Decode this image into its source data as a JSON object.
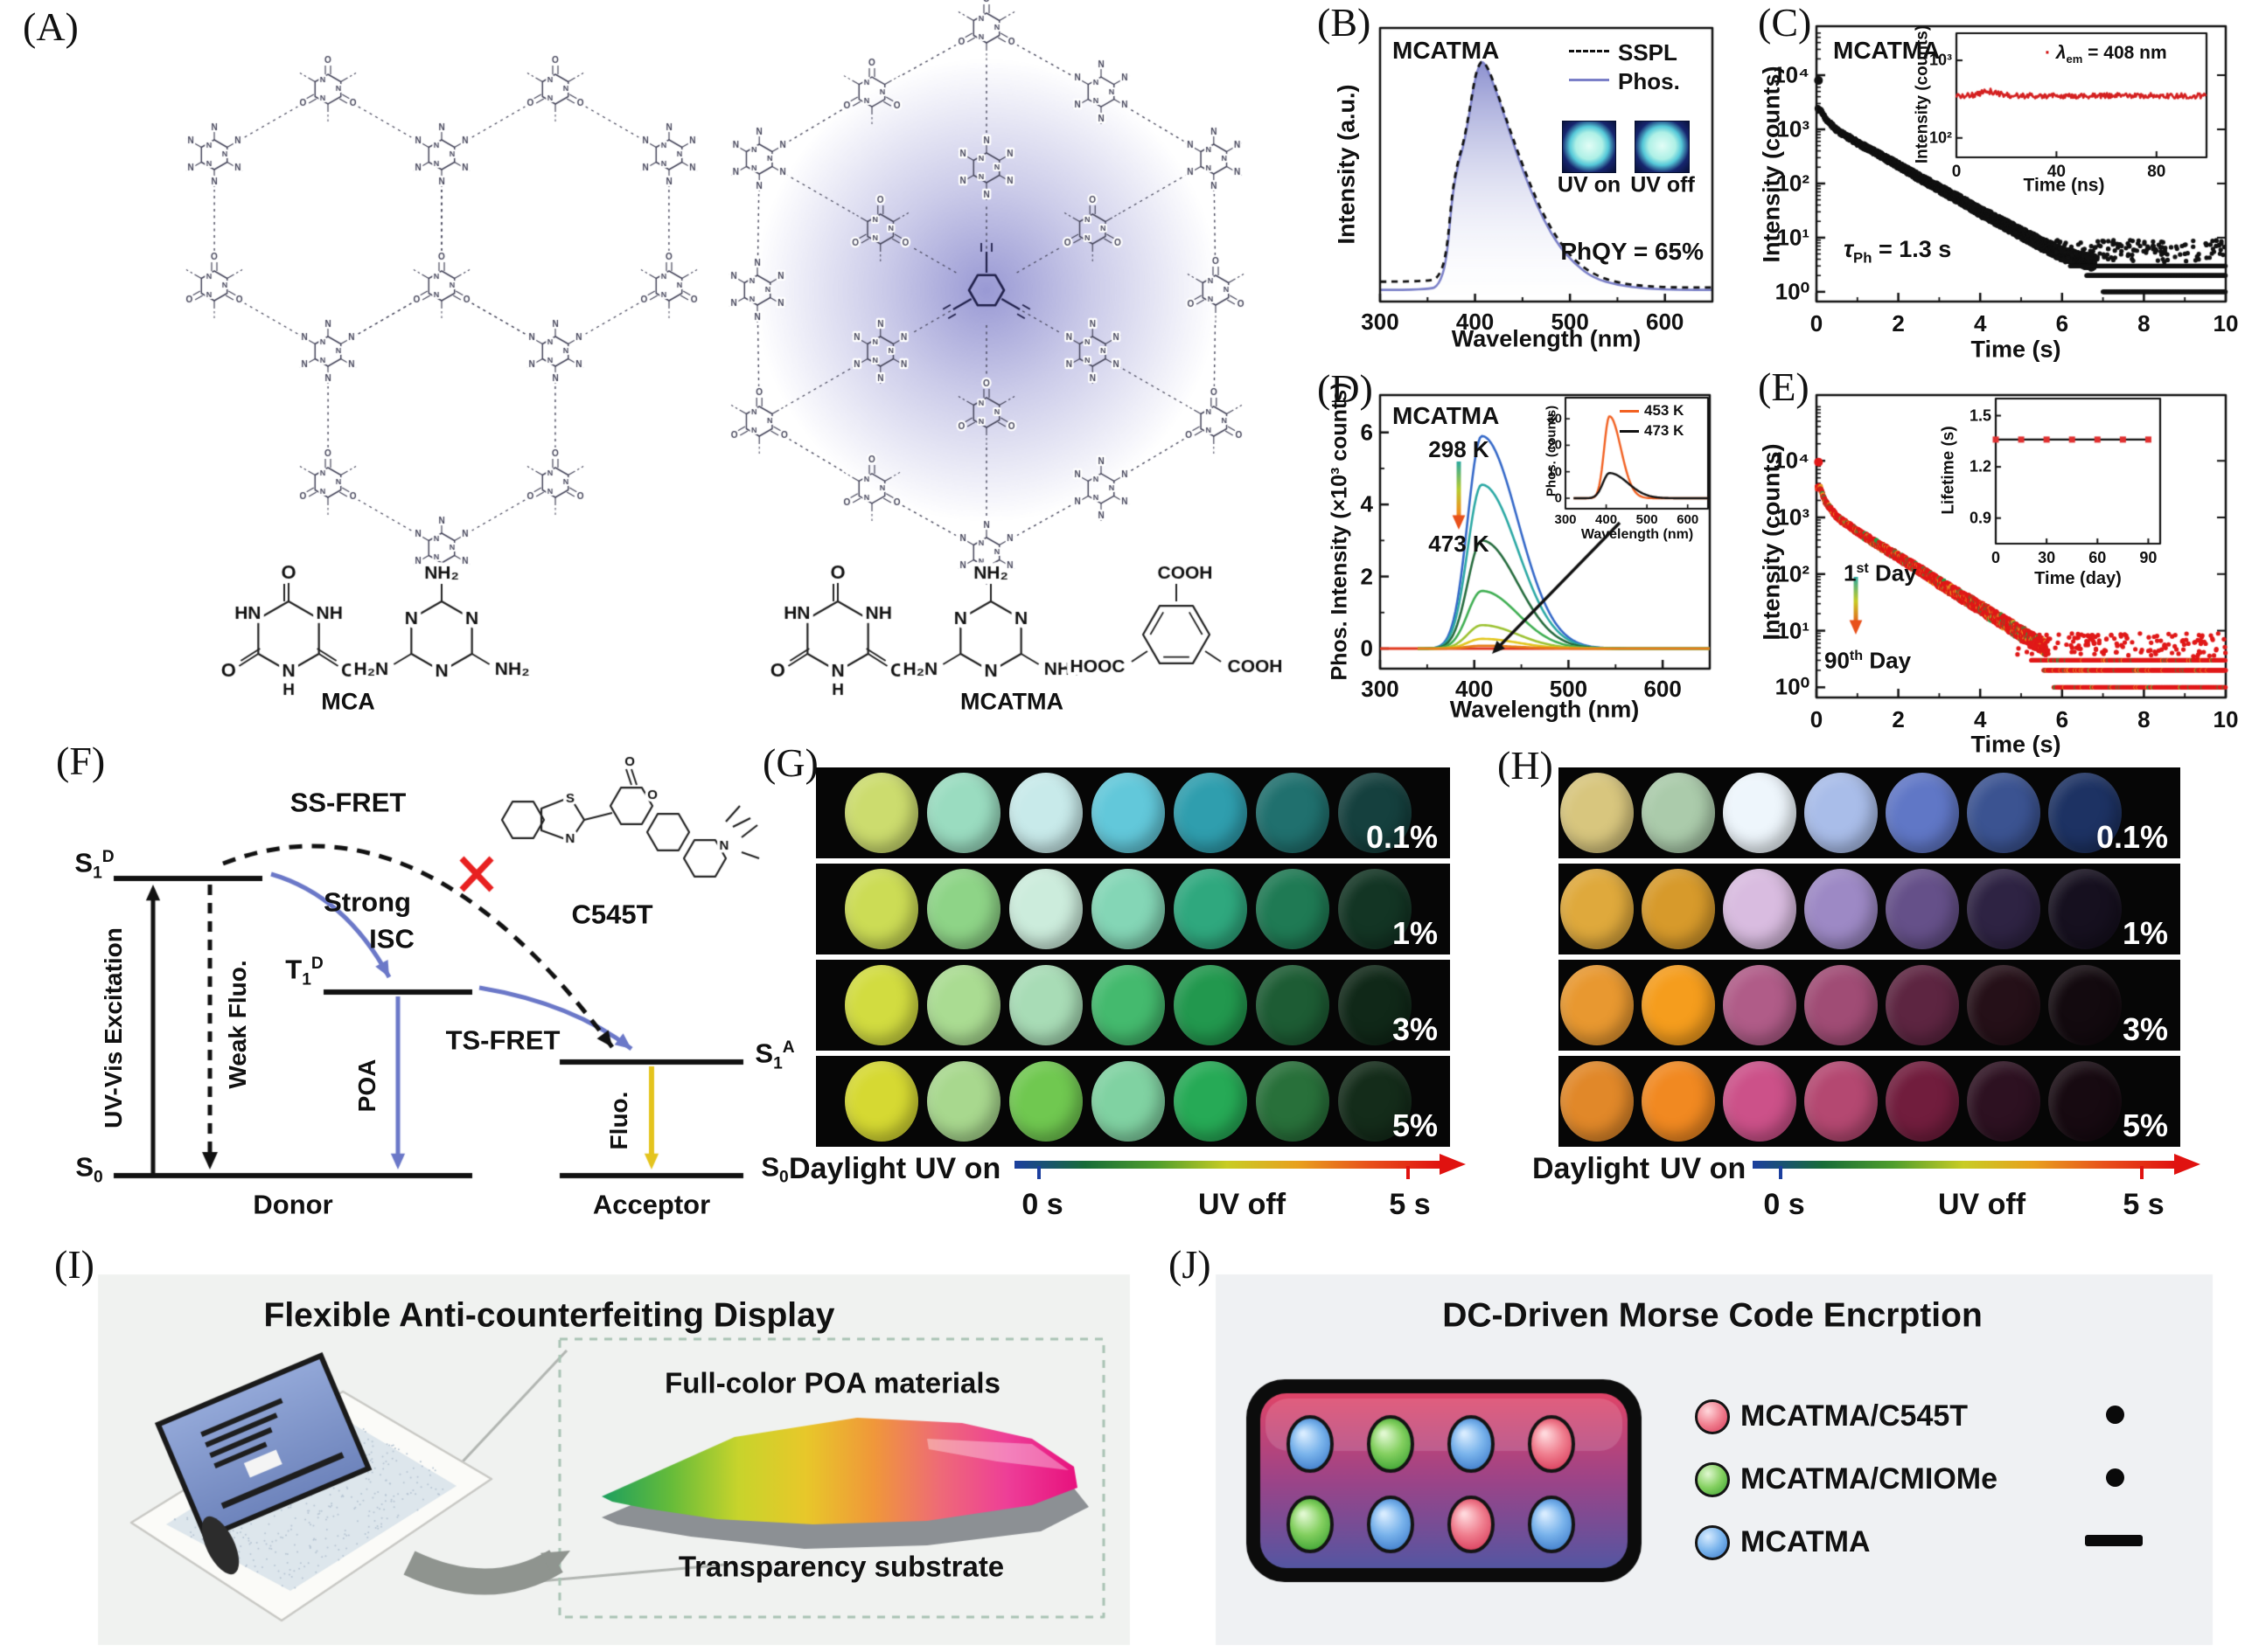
{
  "panels": {
    "A": "(A)",
    "B": "(B)",
    "C": "(C)",
    "D": "(D)",
    "E": "(E)",
    "F": "(F)",
    "G": "(G)",
    "H": "(H)",
    "I": "(I)",
    "J": "(J)"
  },
  "panelA": {
    "left_label": "MCA",
    "right_label": "MCATMA",
    "atoms": {
      "O": "O",
      "N": "N",
      "H": "H",
      "HN": "HN",
      "NH": "NH",
      "NH2": "NH₂",
      "H2N": "H₂N",
      "COOH": "COOH",
      "HOOC": "HOOC"
    },
    "glow_color": "#7d7dc8"
  },
  "panelB": {
    "title": "MCATMA",
    "legend_sspl": "SSPL",
    "legend_phos": "Phos.",
    "uv_on": "UV on",
    "uv_off": "UV off",
    "annotation": "PhQY = 65%",
    "xlabel": "Wavelength (nm)",
    "ylabel": "Intensity (a.u.)",
    "phos_color": "#7b80c8",
    "sspl_color": "#111111"
  },
  "panelC": {
    "title": "MCATMA",
    "ylabel": "Intensity (counts)",
    "xlabel": "Time (s)",
    "tau": {
      "sym": "τ",
      "sub": "Ph",
      "rest": " = 1.3 s"
    },
    "inset": {
      "ylabel": "Intensity (counts)",
      "xlabel": "Time (ns)",
      "legend": {
        "sym": "λ",
        "sub": "em",
        "rest": " = 408 nm"
      },
      "line_color": "#d42020"
    }
  },
  "panelD": {
    "title": "MCATMA",
    "ylabel": "Phos. Intensity (×10³ counts)",
    "xlabel": "Wavelength (nm)",
    "temp_from": "298 K",
    "temp_to": "473 K",
    "inset": {
      "ylabel": "Phos. (counts)",
      "xlabel": "Wavelength (nm)",
      "legend_453": "453 K",
      "legend_473": "473 K"
    }
  },
  "panelE": {
    "ylabel": "Intensity (counts)",
    "xlabel": "Time (s)",
    "day1": {
      "n": "1",
      "sup": "st",
      "rest": " Day"
    },
    "day90": {
      "n": "90",
      "sup": "th",
      "rest": " Day"
    },
    "inset": {
      "ylabel": "Lifetime (s)",
      "xlabel": "Time (day)"
    }
  },
  "panelF": {
    "ss_fret": "SS-FRET",
    "strong": "Strong",
    "isc": "ISC",
    "ts_fret": "TS-FRET",
    "uv_excitation": "UV-Vis Excitation",
    "weak_fluo": "Weak Fluo.",
    "poa": "POA",
    "fluo": "Fluo.",
    "donor": "Donor",
    "acceptor": "Acceptor",
    "c545t": "C545T",
    "s1d": {
      "b": "S",
      "sub": "1",
      "sup": "D"
    },
    "t1d": {
      "b": "T",
      "sub": "1",
      "sup": "D"
    },
    "s1a": {
      "b": "S",
      "sub": "1",
      "sup": "A"
    },
    "s0": {
      "b": "S",
      "sub": "0"
    },
    "atoms": {
      "S": "S",
      "N": "N",
      "O": "O"
    },
    "blue": "#6b78c8",
    "yellow": "#e4c41e",
    "red_x": "#e82020"
  },
  "panelG": {
    "rows": [
      {
        "label": "0.1%",
        "colors": [
          "#ccdc6e",
          "#9adcc0",
          "#c8eaea",
          "#62c8da",
          "#2f9eae",
          "#20706e",
          "#15403e"
        ]
      },
      {
        "label": "1%",
        "colors": [
          "#ccdc55",
          "#8ed487",
          "#ccecdc",
          "#84d6b6",
          "#2fa87e",
          "#1f7a54",
          "#133524"
        ]
      },
      {
        "label": "3%",
        "colors": [
          "#d2dc40",
          "#aadc92",
          "#a8dcb6",
          "#44ba6e",
          "#22984e",
          "#1d5c34",
          "#102818"
        ]
      },
      {
        "label": "5%",
        "colors": [
          "#d6d932",
          "#a8d88e",
          "#70c850",
          "#80d2a2",
          "#26aa56",
          "#28703a",
          "#142c1a"
        ]
      }
    ],
    "daylight": "Daylight",
    "uv_on": "UV on",
    "t0": "0 s",
    "uv_off": "UV off",
    "t5": "5 s",
    "bar_stops": [
      "#1c3f9e",
      "#176c38",
      "#4f9e2c",
      "#c8cc24",
      "#e8a01e",
      "#e8511b",
      "#e01210"
    ]
  },
  "panelH": {
    "rows": [
      {
        "label": "0.1%",
        "colors": [
          "#d8c67e",
          "#abcbab",
          "#eef6fc",
          "#a9bde9",
          "#6077c6",
          "#3b5391",
          "#1d3263"
        ]
      },
      {
        "label": "1%",
        "colors": [
          "#dfa93c",
          "#d79a2b",
          "#d9bce0",
          "#9d89c5",
          "#655089",
          "#2e2343",
          "#16101f"
        ]
      },
      {
        "label": "3%",
        "colors": [
          "#e89830",
          "#f59d1d",
          "#b05c88",
          "#a04c75",
          "#5d2541",
          "#251018",
          "#130a0f"
        ]
      },
      {
        "label": "5%",
        "colors": [
          "#e18829",
          "#f18921",
          "#cc5189",
          "#b44871",
          "#711d3d",
          "#2d1121",
          "#170a11"
        ]
      }
    ],
    "daylight": "Daylight",
    "uv_on": "UV on",
    "t0": "0 s",
    "uv_off": "UV off",
    "t5": "5 s",
    "bar_stops": [
      "#1c3f9e",
      "#176c38",
      "#4f9e2c",
      "#c8cc24",
      "#e8a01e",
      "#e8511b",
      "#e01210"
    ]
  },
  "panelI": {
    "title": "Flexible Anti-counterfeiting Display",
    "film_label": "Full-color POA materials",
    "substrate_label": "Transparency substrate",
    "film_stops": [
      "#1ea05e",
      "#66bc3a",
      "#c8d42c",
      "#e8c82a",
      "#f0983a",
      "#ee6a78",
      "#ee3e98",
      "#e8127e"
    ]
  },
  "panelJ": {
    "title": "DC-Driven Morse Code Encrption",
    "legend": [
      {
        "label": "MCATMA/C545T",
        "color": "red",
        "morse": "dot"
      },
      {
        "label": "MCATMA/CMIOMe",
        "color": "green",
        "morse": "dot"
      },
      {
        "label": "MCATMA",
        "color": "blue",
        "morse": "dash"
      }
    ],
    "buttons": [
      [
        "blue",
        "green",
        "blue",
        "red"
      ],
      [
        "green",
        "blue",
        "red",
        "blue"
      ]
    ],
    "button_colors": {
      "blue": [
        "#d8ecff",
        "#7ab4ec",
        "#3a78c8"
      ],
      "green": [
        "#e0f8d0",
        "#84d060",
        "#38a030"
      ],
      "red": [
        "#ffd8dc",
        "#f08090",
        "#d83858"
      ]
    }
  },
  "chart_data": [
    {
      "id": "B",
      "type": "area",
      "title": "MCATMA",
      "xlabel": "Wavelength (nm)",
      "ylabel": "Intensity (a.u.)",
      "xlim": [
        300,
        650
      ],
      "xticks": [
        300,
        400,
        500,
        600
      ],
      "xminor": [
        350,
        450,
        550,
        650
      ],
      "series": [
        {
          "name": "SSPL",
          "style": "dashed",
          "x": [
            300,
            352,
            362,
            370,
            376,
            382,
            388,
            394,
            400,
            404,
            408,
            414,
            422,
            432,
            444,
            458,
            472,
            488,
            505,
            525,
            550,
            580,
            615,
            650
          ],
          "y": [
            0.055,
            0.055,
            0.075,
            0.17,
            0.44,
            0.57,
            0.65,
            0.78,
            0.93,
            0.98,
            1.0,
            0.965,
            0.88,
            0.76,
            0.62,
            0.47,
            0.34,
            0.23,
            0.145,
            0.085,
            0.05,
            0.035,
            0.03,
            0.03
          ]
        },
        {
          "name": "Phos.",
          "style": "solid-fill",
          "x": [
            300,
            352,
            362,
            370,
            376,
            382,
            388,
            394,
            400,
            404,
            408,
            414,
            422,
            432,
            444,
            458,
            472,
            488,
            505,
            525,
            550,
            580,
            615,
            650
          ],
          "y": [
            0.02,
            0.02,
            0.04,
            0.14,
            0.42,
            0.555,
            0.635,
            0.77,
            0.92,
            0.975,
            1.0,
            0.955,
            0.87,
            0.75,
            0.6,
            0.45,
            0.32,
            0.21,
            0.13,
            0.07,
            0.04,
            0.025,
            0.02,
            0.02
          ]
        }
      ],
      "annotation": "PhQY = 65%"
    },
    {
      "id": "C",
      "type": "scatter-decay-log",
      "title": "MCATMA",
      "xlabel": "Time (s)",
      "ylabel": "Intensity (counts)",
      "xlim": [
        0,
        10
      ],
      "xticks": [
        0,
        2,
        4,
        6,
        8,
        10
      ],
      "yticks": [
        "10⁰",
        "10¹",
        "10²",
        "10³",
        "10⁴"
      ],
      "first_point": [
        0.05,
        8000
      ],
      "anchors_t": [
        0.08,
        0.2,
        0.5,
        1.0,
        1.5,
        2.0,
        2.5,
        3.0,
        3.5,
        4.0,
        4.5,
        5.0,
        5.5,
        6.0,
        6.5,
        6.8
      ],
      "anchors_counts": [
        2400,
        1600,
        950,
        560,
        350,
        215,
        130,
        80,
        50,
        30,
        19,
        12,
        7.5,
        5,
        3.8,
        3.4
      ],
      "floors": [
        [
          1,
          7.0
        ],
        [
          2,
          6.6
        ],
        [
          3,
          6.2
        ]
      ],
      "tau": 1.3
    },
    {
      "id": "C_inset",
      "type": "line-log",
      "xlabel": "Time (ns)",
      "ylabel": "Intensity (counts)",
      "xlim": [
        0,
        100
      ],
      "xticks": [
        0,
        40,
        80
      ],
      "yticks": [
        "10²",
        "10³"
      ],
      "level": 350,
      "em_nm": 408
    },
    {
      "id": "D",
      "type": "multi-peak",
      "title": "MCATMA",
      "xlabel": "Wavelength (nm)",
      "ylabel": "Phos. Intensity (×10³ counts)",
      "xlim": [
        300,
        650
      ],
      "xticks": [
        300,
        400,
        500,
        600
      ],
      "yticks": [
        0,
        2,
        4,
        6
      ],
      "peak_nm": 408,
      "sigma_left": 15,
      "sigma_right": 38,
      "heights": [
        5.9,
        4.55,
        3.0,
        1.6,
        0.65,
        0.27,
        0.08
      ],
      "colors": [
        "#3468c8",
        "#2ba8a4",
        "#256b3d",
        "#3fae52",
        "#9cc232",
        "#e2c61e",
        "#e67d1a"
      ],
      "baseline_color": "#e0391f",
      "temps": [
        "298 K",
        "473 K"
      ]
    },
    {
      "id": "D_inset",
      "type": "multi-peak",
      "xlabel": "Wavelength (nm)",
      "ylabel": "Phos. (counts)",
      "xlim": [
        300,
        650
      ],
      "xticks": [
        300,
        400,
        500,
        600
      ],
      "yticks": [
        0,
        10,
        20,
        30
      ],
      "peak_nm": 408,
      "heights": [
        31,
        9.5
      ],
      "colors": [
        "#f26122",
        "#111111"
      ],
      "legend": [
        "453 K",
        "473 K"
      ]
    },
    {
      "id": "E",
      "type": "scatter-decay-log",
      "xlabel": "Time (s)",
      "ylabel": "Intensity (counts)",
      "xlim": [
        0,
        10
      ],
      "xticks": [
        0,
        2,
        4,
        6,
        8,
        10
      ],
      "yticks": [
        "10⁰",
        "10¹",
        "10²",
        "10³",
        "10⁴"
      ],
      "first_point": [
        0.05,
        9500
      ],
      "anchors_t": [
        0.08,
        0.2,
        0.5,
        1.0,
        1.5,
        2.0,
        2.5,
        3.0,
        3.5,
        4.0,
        4.5,
        5.0,
        5.3,
        5.6
      ],
      "anchors_counts": [
        3400,
        1900,
        1000,
        560,
        330,
        200,
        120,
        70,
        42,
        25,
        15,
        9,
        6.5,
        5
      ],
      "floors": [
        [
          1,
          5.8
        ],
        [
          2,
          5.55
        ],
        [
          3,
          5.25
        ]
      ],
      "days": [
        "1st",
        "90th"
      ]
    },
    {
      "id": "E_inset",
      "type": "line-markers",
      "xlabel": "Time (day)",
      "ylabel": "Lifetime (s)",
      "xlim": [
        0,
        97
      ],
      "xticks": [
        0,
        30,
        60,
        90
      ],
      "yticks": [
        0.9,
        1.2,
        1.5
      ],
      "x": [
        0,
        15,
        30,
        45,
        60,
        75,
        90
      ],
      "y": [
        1.36,
        1.36,
        1.36,
        1.36,
        1.36,
        1.36,
        1.36
      ]
    }
  ]
}
